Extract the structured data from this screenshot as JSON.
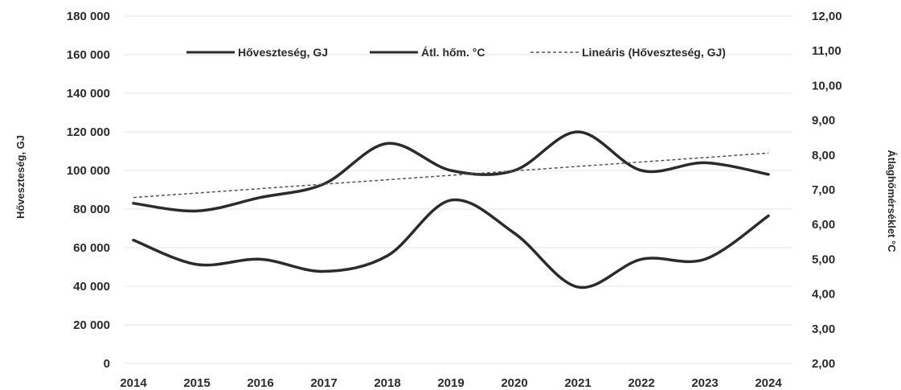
{
  "chart_data": {
    "type": "line",
    "title": "",
    "categories": [
      "2014",
      "2015",
      "2016",
      "2017",
      "2018",
      "2019",
      "2020",
      "2021",
      "2022",
      "2023",
      "2024"
    ],
    "ylabel": "Hőveszteség, GJ",
    "y2label": "Átlaghőmérséklet °C",
    "ylim": [
      0,
      180000
    ],
    "y2lim": [
      2.0,
      12.0
    ],
    "y_ticks": [
      "0",
      "20 000",
      "40 000",
      "60 000",
      "80 000",
      "100 000",
      "120 000",
      "140 000",
      "160 000",
      "180 000"
    ],
    "y2_ticks": [
      "2,00",
      "3,00",
      "4,00",
      "5,00",
      "6,00",
      "7,00",
      "8,00",
      "9,00",
      "10,00",
      "11,00",
      "12,00"
    ],
    "legend_position": "top",
    "grid": true,
    "series": [
      {
        "name": "Hőveszteség, GJ",
        "axis": "left",
        "color": "#2b2b2b",
        "values": [
          83000,
          79000,
          86000,
          93000,
          114000,
          100000,
          100000,
          120000,
          100000,
          104000,
          98000
        ]
      },
      {
        "name": "Átl. hőm. °C",
        "axis": "right",
        "color": "#2b2b2b",
        "values": [
          5.55,
          4.85,
          5.0,
          4.65,
          5.1,
          6.7,
          5.75,
          4.2,
          5.0,
          5.0,
          6.25
        ]
      },
      {
        "name": "Lineáris (Hőveszteség, GJ)",
        "axis": "left",
        "color": "#555555",
        "dashed": true,
        "values": [
          86000,
          88300,
          90600,
          92900,
          95200,
          97500,
          99800,
          102100,
          104400,
          106700,
          109000
        ]
      }
    ]
  }
}
